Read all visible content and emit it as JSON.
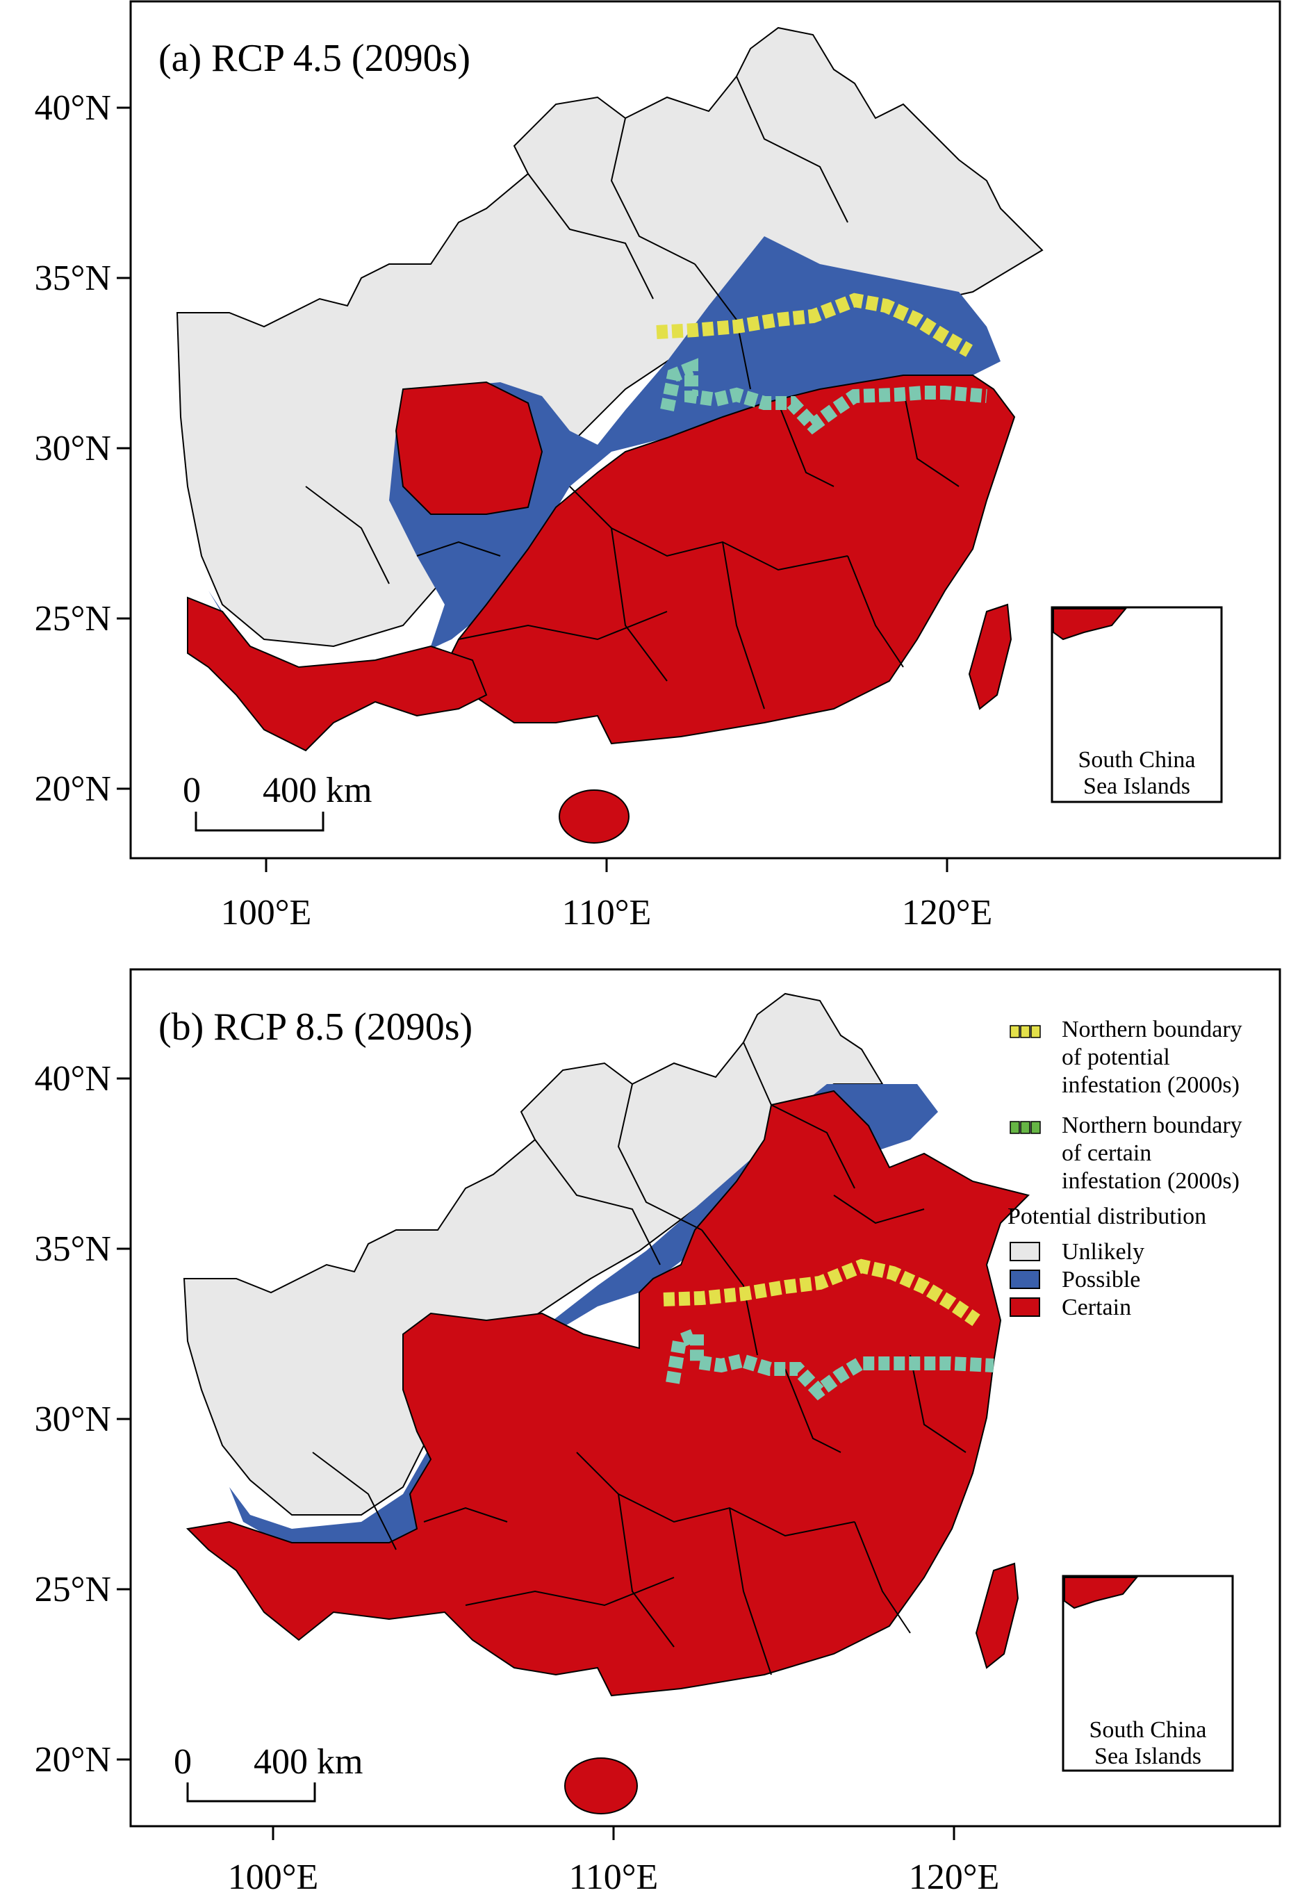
{
  "colors": {
    "unlikely": "#e8e8e8",
    "possible": "#3a5fab",
    "certain": "#cc0a13",
    "potential_boundary": "#e3e04a",
    "certain_boundary": "#7cc8b0",
    "certain_boundary_legend": "#66b545"
  },
  "panels": [
    {
      "title": "(a) RCP 4.5 (2090s)",
      "lat_ticks": [
        "40°N",
        "35°N",
        "30°N",
        "25°N",
        "20°N"
      ],
      "lon_ticks": [
        "100°E",
        "110°E",
        "120°E"
      ],
      "scalebar": {
        "zero": "0",
        "dist": "400 km"
      },
      "inset_label_1": "South China",
      "inset_label_2": "Sea Islands"
    },
    {
      "title": "(b) RCP 8.5 (2090s)",
      "lat_ticks": [
        "40°N",
        "35°N",
        "30°N",
        "25°N",
        "20°N"
      ],
      "lon_ticks": [
        "100°E",
        "110°E",
        "120°E"
      ],
      "scalebar": {
        "zero": "0",
        "dist": "400 km"
      },
      "inset_label_1": "South China",
      "inset_label_2": "Sea Islands"
    }
  ],
  "legend": {
    "boundary1_line1": "Northern boundary",
    "boundary1_line2": "of potential",
    "boundary1_line3": "infestation (2000s)",
    "boundary2_line1": "Northern boundary",
    "boundary2_line2": "of certain",
    "boundary2_line3": "infestation (2000s)",
    "title": "Potential distribution",
    "unlikely": "Unlikely",
    "possible": "Possible",
    "certain": "Certain"
  }
}
